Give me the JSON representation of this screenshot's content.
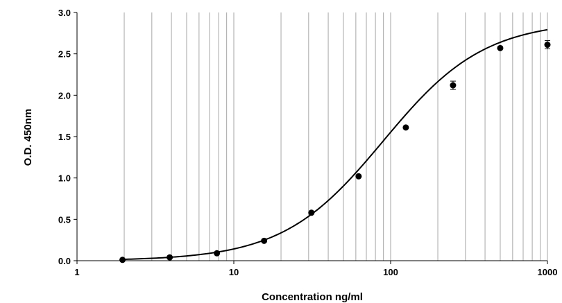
{
  "chart_data": {
    "type": "scatter",
    "title": "",
    "xlabel": "Concentration ng/ml",
    "ylabel": "O.D. 450nm",
    "xscale": "log",
    "xlim": [
      1,
      1000
    ],
    "ylim": [
      0,
      3.0
    ],
    "grid": "vertical log gridlines",
    "x_ticks": [
      1,
      10,
      100,
      1000
    ],
    "x_tick_labels": [
      "1",
      "10",
      "100",
      "1000"
    ],
    "y_ticks": [
      0,
      0.5,
      1.0,
      1.5,
      2.0,
      2.5,
      3.0
    ],
    "y_tick_labels": [
      "0.0",
      "0.5",
      "1.0",
      "1.5",
      "2.0",
      "2.5",
      "3.0"
    ],
    "series": [
      {
        "x": [
          1.95,
          3.9,
          7.8,
          15.6,
          31.25,
          62.5,
          125,
          250,
          500,
          1000
        ],
        "y": [
          0.01,
          0.04,
          0.09,
          0.24,
          0.58,
          1.02,
          1.61,
          2.12,
          2.57,
          2.61
        ],
        "error": [
          0,
          0,
          0,
          0,
          0,
          0,
          0,
          0.05,
          0,
          0.05
        ],
        "marker": "circle",
        "color": "#000000"
      }
    ],
    "fit_curve": {
      "type": "4PL sigmoid",
      "color": "#000000"
    }
  }
}
